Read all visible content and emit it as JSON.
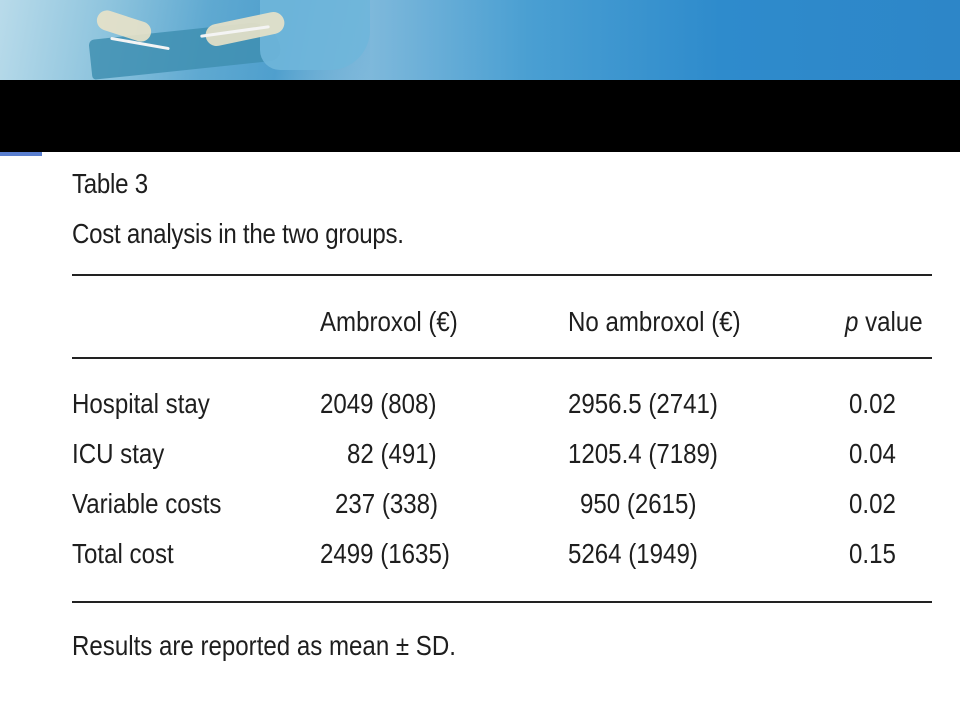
{
  "table": {
    "label": "Table 3",
    "caption": "Cost analysis in the two groups.",
    "columns": {
      "c1": "Ambroxol (€)",
      "c2": "No ambroxol (€)",
      "c3_italic": "p",
      "c3_rest": " value"
    },
    "rows": [
      {
        "label": "Hospital stay",
        "a": "2049 (808)",
        "b": "2956.5 (2741)",
        "p": "0.02"
      },
      {
        "label": "ICU stay",
        "a": "82 (491)",
        "b": "1205.4 (7189)",
        "p": "0.04"
      },
      {
        "label": "Variable costs",
        "a": "237 (338)",
        "b": "950 (2615)",
        "p": "0.02"
      },
      {
        "label": "Total cost",
        "a": "2499 (1635)",
        "b": "5264 (1949)",
        "p": "0.15"
      }
    ],
    "footnote": "Results are reported as mean ± SD."
  }
}
